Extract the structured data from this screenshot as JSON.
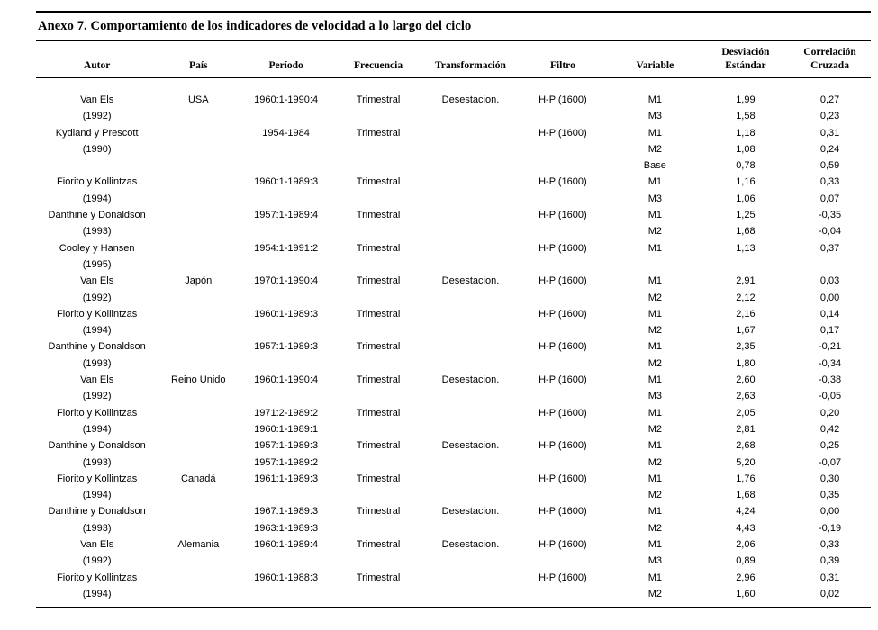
{
  "title": "Anexo 7. Comportamiento de los indicadores de velocidad a lo largo del ciclo",
  "table": {
    "columns": [
      {
        "top": "",
        "label": "Autor"
      },
      {
        "top": "",
        "label": "País"
      },
      {
        "top": "",
        "label": "Período"
      },
      {
        "top": "",
        "label": "Frecuencia"
      },
      {
        "top": "",
        "label": "Transformación"
      },
      {
        "top": "",
        "label": "Filtro"
      },
      {
        "top": "",
        "label": "Variable"
      },
      {
        "top": "Desviación",
        "label": "Estándar"
      },
      {
        "top": "Correlación",
        "label": "Cruzada"
      }
    ],
    "rows": [
      [
        "Van Els",
        "USA",
        "1960:1-1990:4",
        "Trimestral",
        "Desestacion.",
        "H-P (1600)",
        "M1",
        "1,99",
        "0,27"
      ],
      [
        "(1992)",
        "",
        "",
        "",
        "",
        "",
        "M3",
        "1,58",
        "0,23"
      ],
      [
        "Kydland y Prescott",
        "",
        "1954-1984",
        "Trimestral",
        "",
        "H-P (1600)",
        "M1",
        "1,18",
        "0,31"
      ],
      [
        "(1990)",
        "",
        "",
        "",
        "",
        "",
        "M2",
        "1,08",
        "0,24"
      ],
      [
        "",
        "",
        "",
        "",
        "",
        "",
        "Base",
        "0,78",
        "0,59"
      ],
      [
        "Fiorito y Kollintzas",
        "",
        "1960:1-1989:3",
        "Trimestral",
        "",
        "H-P (1600)",
        "M1",
        "1,16",
        "0,33"
      ],
      [
        "(1994)",
        "",
        "",
        "",
        "",
        "",
        "M3",
        "1,06",
        "0,07"
      ],
      [
        "Danthine y Donaldson",
        "",
        "1957:1-1989:4",
        "Trimestral",
        "",
        "H-P (1600)",
        "M1",
        "1,25",
        "-0,35"
      ],
      [
        "(1993)",
        "",
        "",
        "",
        "",
        "",
        "M2",
        "1,68",
        "-0,04"
      ],
      [
        "Cooley y Hansen",
        "",
        "1954:1-1991:2",
        "Trimestral",
        "",
        "H-P (1600)",
        "M1",
        "1,13",
        "0,37"
      ],
      [
        "(1995)",
        "",
        "",
        "",
        "",
        "",
        "",
        "",
        ""
      ],
      [
        "Van Els",
        "Japón",
        "1970:1-1990:4",
        "Trimestral",
        "Desestacion.",
        "H-P (1600)",
        "M1",
        "2,91",
        "0,03"
      ],
      [
        "(1992)",
        "",
        "",
        "",
        "",
        "",
        "M2",
        "2,12",
        "0,00"
      ],
      [
        "Fiorito y Kollintzas",
        "",
        "1960:1-1989:3",
        "Trimestral",
        "",
        "H-P (1600)",
        "M1",
        "2,16",
        "0,14"
      ],
      [
        "(1994)",
        "",
        "",
        "",
        "",
        "",
        "M2",
        "1,67",
        "0,17"
      ],
      [
        "Danthine y Donaldson",
        "",
        "1957:1-1989:3",
        "Trimestral",
        "",
        "H-P (1600)",
        "M1",
        "2,35",
        "-0,21"
      ],
      [
        "(1993)",
        "",
        "",
        "",
        "",
        "",
        "M2",
        "1,80",
        "-0,34"
      ],
      [
        "Van Els",
        "Reino Unido",
        "1960:1-1990:4",
        "Trimestral",
        "Desestacion.",
        "H-P (1600)",
        "M1",
        "2,60",
        "-0,38"
      ],
      [
        "(1992)",
        "",
        "",
        "",
        "",
        "",
        "M3",
        "2,63",
        "-0,05"
      ],
      [
        "Fiorito y Kollintzas",
        "",
        "1971:2-1989:2",
        "Trimestral",
        "",
        "H-P (1600)",
        "M1",
        "2,05",
        "0,20"
      ],
      [
        "(1994)",
        "",
        "1960:1-1989:1",
        "",
        "",
        "",
        "M2",
        "2,81",
        "0,42"
      ],
      [
        "Danthine y Donaldson",
        "",
        "1957:1-1989:3",
        "Trimestral",
        "Desestacion.",
        "H-P (1600)",
        "M1",
        "2,68",
        "0,25"
      ],
      [
        "(1993)",
        "",
        "1957:1-1989:2",
        "",
        "",
        "",
        "M2",
        "5,20",
        "-0,07"
      ],
      [
        "Fiorito y Kollintzas",
        "Canadá",
        "1961:1-1989:3",
        "Trimestral",
        "",
        "H-P (1600)",
        "M1",
        "1,76",
        "0,30"
      ],
      [
        "(1994)",
        "",
        "",
        "",
        "",
        "",
        "M2",
        "1,68",
        "0,35"
      ],
      [
        "Danthine y Donaldson",
        "",
        "1967:1-1989:3",
        "Trimestral",
        "Desestacion.",
        "H-P (1600)",
        "M1",
        "4,24",
        "0,00"
      ],
      [
        "(1993)",
        "",
        "1963:1-1989:3",
        "",
        "",
        "",
        "M2",
        "4,43",
        "-0,19"
      ],
      [
        "Van Els",
        "Alemania",
        "1960:1-1989:4",
        "Trimestral",
        "Desestacion.",
        "H-P (1600)",
        "M1",
        "2,06",
        "0,33"
      ],
      [
        "(1992)",
        "",
        "",
        "",
        "",
        "",
        "M3",
        "0,89",
        "0,39"
      ],
      [
        "Fiorito y Kollintzas",
        "",
        "1960:1-1988:3",
        "Trimestral",
        "",
        "H-P (1600)",
        "M1",
        "2,96",
        "0,31"
      ],
      [
        "(1994)",
        "",
        "",
        "",
        "",
        "",
        "M2",
        "1,60",
        "0,02"
      ]
    ]
  }
}
